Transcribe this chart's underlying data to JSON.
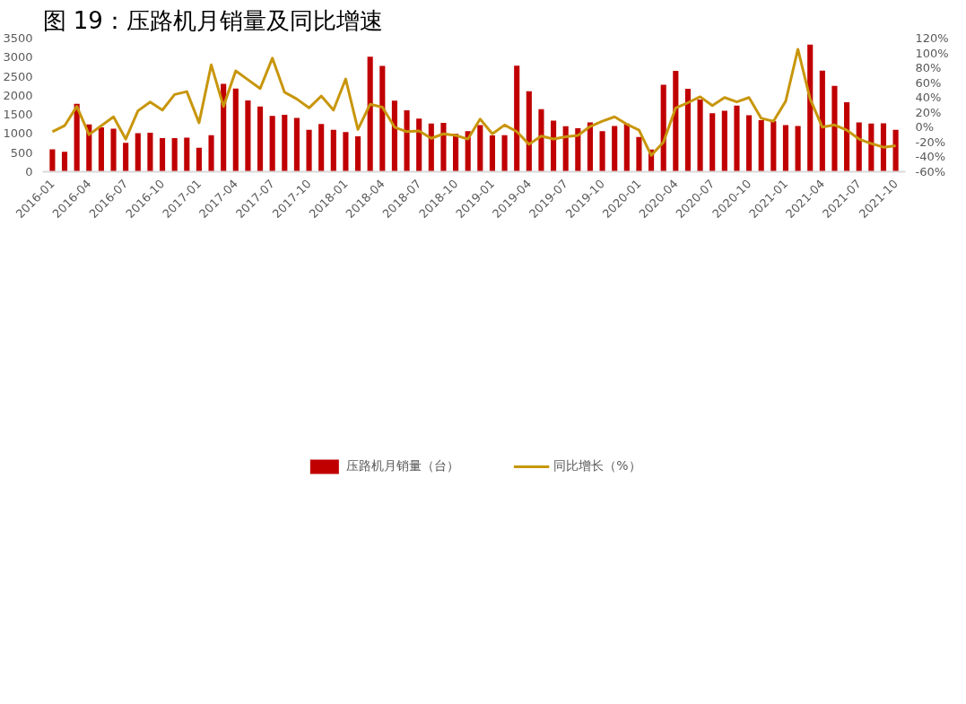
{
  "chart_data": {
    "type": "bar",
    "title": "图 19：压路机月销量及同比增速",
    "categories": [
      "2016-01",
      null,
      null,
      "2016-04",
      null,
      null,
      "2016-07",
      null,
      null,
      "2016-10",
      null,
      null,
      "2017-01",
      null,
      null,
      "2017-04",
      null,
      null,
      "2017-07",
      null,
      null,
      "2017-10",
      null,
      null,
      "2018-01",
      null,
      null,
      "2018-04",
      null,
      null,
      "2018-07",
      null,
      null,
      "2018-10",
      null,
      null,
      "2019-01",
      null,
      null,
      "2019-04",
      null,
      null,
      "2019-07",
      null,
      null,
      "2019-10",
      null,
      null,
      "2020-01",
      null,
      null,
      "2020-04",
      null,
      null,
      "2020-07",
      null,
      null,
      "2020-10",
      null,
      null,
      "2021-01",
      null,
      null,
      "2021-04",
      null,
      null,
      "2021-07",
      null,
      null,
      "2021-10"
    ],
    "series": [
      {
        "name": "压路机月销量（台）",
        "color": "#c00000",
        "values": [
          590,
          520,
          1780,
          1240,
          1160,
          1130,
          760,
          1010,
          1020,
          880,
          880,
          890,
          630,
          960,
          2300,
          2180,
          1870,
          1710,
          1460,
          1490,
          1410,
          1100,
          1250,
          1100,
          1040,
          930,
          3010,
          2770,
          1860,
          1610,
          1390,
          1260,
          1280,
          990,
          1060,
          1220,
          950,
          960,
          2780,
          2110,
          1640,
          1340,
          1190,
          1140,
          1290,
          1060,
          1200,
          1260,
          910,
          580,
          2280,
          2640,
          2170,
          1890,
          1530,
          1600,
          1730,
          1480,
          1350,
          1330,
          1220,
          1200,
          3330,
          2650,
          2250,
          1820,
          1290,
          1260,
          1270,
          1100
        ]
      },
      {
        "name": "同比增长（%）",
        "type": "line",
        "axis": "y2",
        "color": "#c8960c",
        "values": [
          -6,
          2,
          28,
          -10,
          2,
          14,
          -16,
          22,
          34,
          23,
          44,
          48,
          6,
          84,
          28,
          76,
          64,
          52,
          93,
          47,
          38,
          26,
          42,
          23,
          65,
          -3,
          31,
          27,
          0,
          -6,
          -5,
          -15,
          -9,
          -11,
          -16,
          11,
          -9,
          3,
          -6,
          -23,
          -12,
          -16,
          -13,
          -11,
          1,
          8,
          14,
          4,
          -4,
          -38,
          -20,
          26,
          33,
          41,
          29,
          40,
          34,
          40,
          12,
          8,
          35,
          105,
          38,
          0,
          3,
          -4,
          -16,
          -22,
          -27,
          -25
        ]
      }
    ],
    "ylim": [
      0,
      3500
    ],
    "yticks": [
      0,
      500,
      1000,
      1500,
      2000,
      2500,
      3000,
      3500
    ],
    "y2lim": [
      -60,
      120
    ],
    "y2ticks": [
      {
        "value": -60,
        "label": "-60%"
      },
      {
        "value": -40,
        "label": "-40%"
      },
      {
        "value": -20,
        "label": "-20%"
      },
      {
        "value": 0,
        "label": "0%"
      },
      {
        "value": 20,
        "label": "20%"
      },
      {
        "value": 40,
        "label": "40%"
      },
      {
        "value": 60,
        "label": "60%"
      },
      {
        "value": 80,
        "label": "80%"
      },
      {
        "value": 100,
        "label": "100%"
      },
      {
        "value": 120,
        "label": "120%"
      }
    ],
    "grid": false,
    "legend": "bottom",
    "marker": "none",
    "line_style": "solid"
  }
}
